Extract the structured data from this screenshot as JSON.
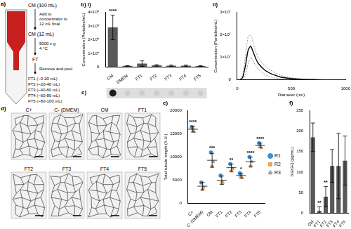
{
  "panels": {
    "a": {
      "label": "a)",
      "start": "CM (100 mL)",
      "step1_note": [
        "Add to",
        "concentrator to",
        "12 mL final"
      ],
      "concentrate": "CM (12 mL)",
      "step2_note": [
        "5000 x g",
        "4 °C"
      ],
      "filtrate": "FT",
      "step3_note": [
        "Remove and pool"
      ],
      "fractions": [
        "FT1 (~0-20 mL)",
        "FT2 (~20-40 mL)",
        "FT3 (~40-60 mL)",
        "FT4 (~60-80 mL)",
        "FT5 (~80-100 mL)"
      ]
    },
    "c": {
      "label": "c)",
      "signal": [
        true,
        false,
        false,
        false,
        false,
        false,
        false
      ]
    },
    "d": {
      "label": "d)",
      "images": [
        "C+",
        "C- (DMEM)",
        "CM",
        "FT1",
        "FT2",
        "FT3",
        "FT4",
        "FT5"
      ]
    }
  },
  "chart_data": [
    {
      "type": "bar",
      "title": "b) i)",
      "ylabel": "Concentration (Particles/mL)",
      "categories": [
        "CM",
        "DMEM",
        "FT1",
        "FT2",
        "FT3",
        "FT4",
        "FT5"
      ],
      "values": [
        2900000000,
        80000000,
        250000000,
        120000000,
        100000000,
        100000000,
        70000000
      ],
      "errors": [
        900000000,
        20000000,
        200000000,
        50000000,
        40000000,
        40000000,
        30000000
      ],
      "color": "#595959",
      "ylim": [
        0,
        4000000000
      ],
      "yticks": [
        0,
        {
          "value": 1000000000,
          "label": "1×10⁹"
        },
        {
          "value": 2000000000,
          "label": "2×10⁹"
        },
        {
          "value": 3000000000,
          "label": "3×10⁹"
        },
        {
          "value": 4000000000,
          "label": "4×10⁹"
        }
      ],
      "grid": false,
      "annotations": [
        {
          "category": "CM",
          "text": "****"
        }
      ]
    },
    {
      "type": "line",
      "title": "ii)",
      "xlabel": "Diameter (nm)",
      "ylabel": "Concentration (Particles/mL)",
      "x": [
        25,
        50,
        75,
        100,
        125,
        150,
        175,
        200,
        250,
        300,
        350,
        400,
        450,
        500,
        600,
        700,
        800,
        900,
        1000
      ],
      "values": [
        0,
        1000000,
        6000000,
        13000000,
        15000000,
        12000000,
        9000000,
        7000000,
        4500000,
        3000000,
        2000000,
        1200000,
        800000,
        500000,
        200000,
        100000,
        0,
        0,
        0
      ],
      "errors": [
        0,
        1000000,
        4000000,
        6000000,
        5000000,
        4000000,
        3000000,
        2500000,
        2000000,
        1500000,
        1200000,
        800000,
        600000,
        400000,
        200000,
        100000,
        0,
        0,
        0
      ],
      "color": "#000000",
      "xlim": [
        0,
        1000
      ],
      "xticks": [
        0,
        500,
        1000
      ],
      "ylim": [
        0,
        30000000
      ],
      "yticks": [
        0,
        {
          "value": 10000000,
          "label": "1×10⁷"
        },
        {
          "value": 20000000,
          "label": "2×10⁷"
        },
        {
          "value": 30000000,
          "label": "3×10⁷"
        }
      ],
      "grid": false
    },
    {
      "type": "scatter",
      "title": "e)",
      "ylabel": "Total tubule length (A.U.)",
      "categories": [
        "C+",
        "C- (DMEM)",
        "CM",
        "FT1",
        "FT2",
        "FT3",
        "FT4",
        "FT5"
      ],
      "series": [
        {
          "name": "R1",
          "color": "#3d8fd1",
          "marker": "circle",
          "values": [
            16500,
            4500,
            11000,
            6000,
            8500,
            6500,
            10000,
            13000
          ]
        },
        {
          "name": "R2",
          "color": "#f0a050",
          "marker": "square",
          "values": [
            16000,
            3000,
            8000,
            4500,
            7000,
            6000,
            8000,
            12500
          ]
        },
        {
          "name": "R3",
          "color": "#a0a0a0",
          "marker": "triangle",
          "values": [
            15500,
            3500,
            9000,
            4500,
            7500,
            5500,
            9000,
            12000
          ]
        }
      ],
      "means": [
        16000,
        3700,
        9300,
        5000,
        7700,
        6000,
        9000,
        12500
      ],
      "errors": [
        600,
        800,
        1500,
        900,
        800,
        500,
        1000,
        500
      ],
      "ylim": [
        0,
        20000
      ],
      "yticks": [
        0,
        5000,
        10000,
        15000,
        20000
      ],
      "grid": false,
      "legend": "right",
      "annotations": [
        {
          "category": "C+",
          "text": "****"
        },
        {
          "category": "CM",
          "text": "***"
        },
        {
          "category": "FT2",
          "text": "**"
        },
        {
          "category": "FT3",
          "text": "*"
        },
        {
          "category": "FT4",
          "text": "****"
        },
        {
          "category": "FT5",
          "text": "****"
        }
      ]
    },
    {
      "type": "bar",
      "title": "f)",
      "ylabel": "[VEGF] (pg/mL)",
      "categories": [
        "CM",
        "FT1",
        "FT2",
        "FT3",
        "FT4",
        "FT5"
      ],
      "values": [
        185,
        5,
        40,
        115,
        115,
        128
      ],
      "errors": [
        35,
        10,
        25,
        40,
        80,
        60
      ],
      "color": "#595959",
      "ylim": [
        0,
        250
      ],
      "yticks": [
        0,
        50,
        100,
        150,
        200,
        250
      ],
      "grid": false,
      "annotations": [
        {
          "category": "FT1",
          "text": "**"
        },
        {
          "category": "FT2",
          "text": "**"
        }
      ]
    }
  ]
}
